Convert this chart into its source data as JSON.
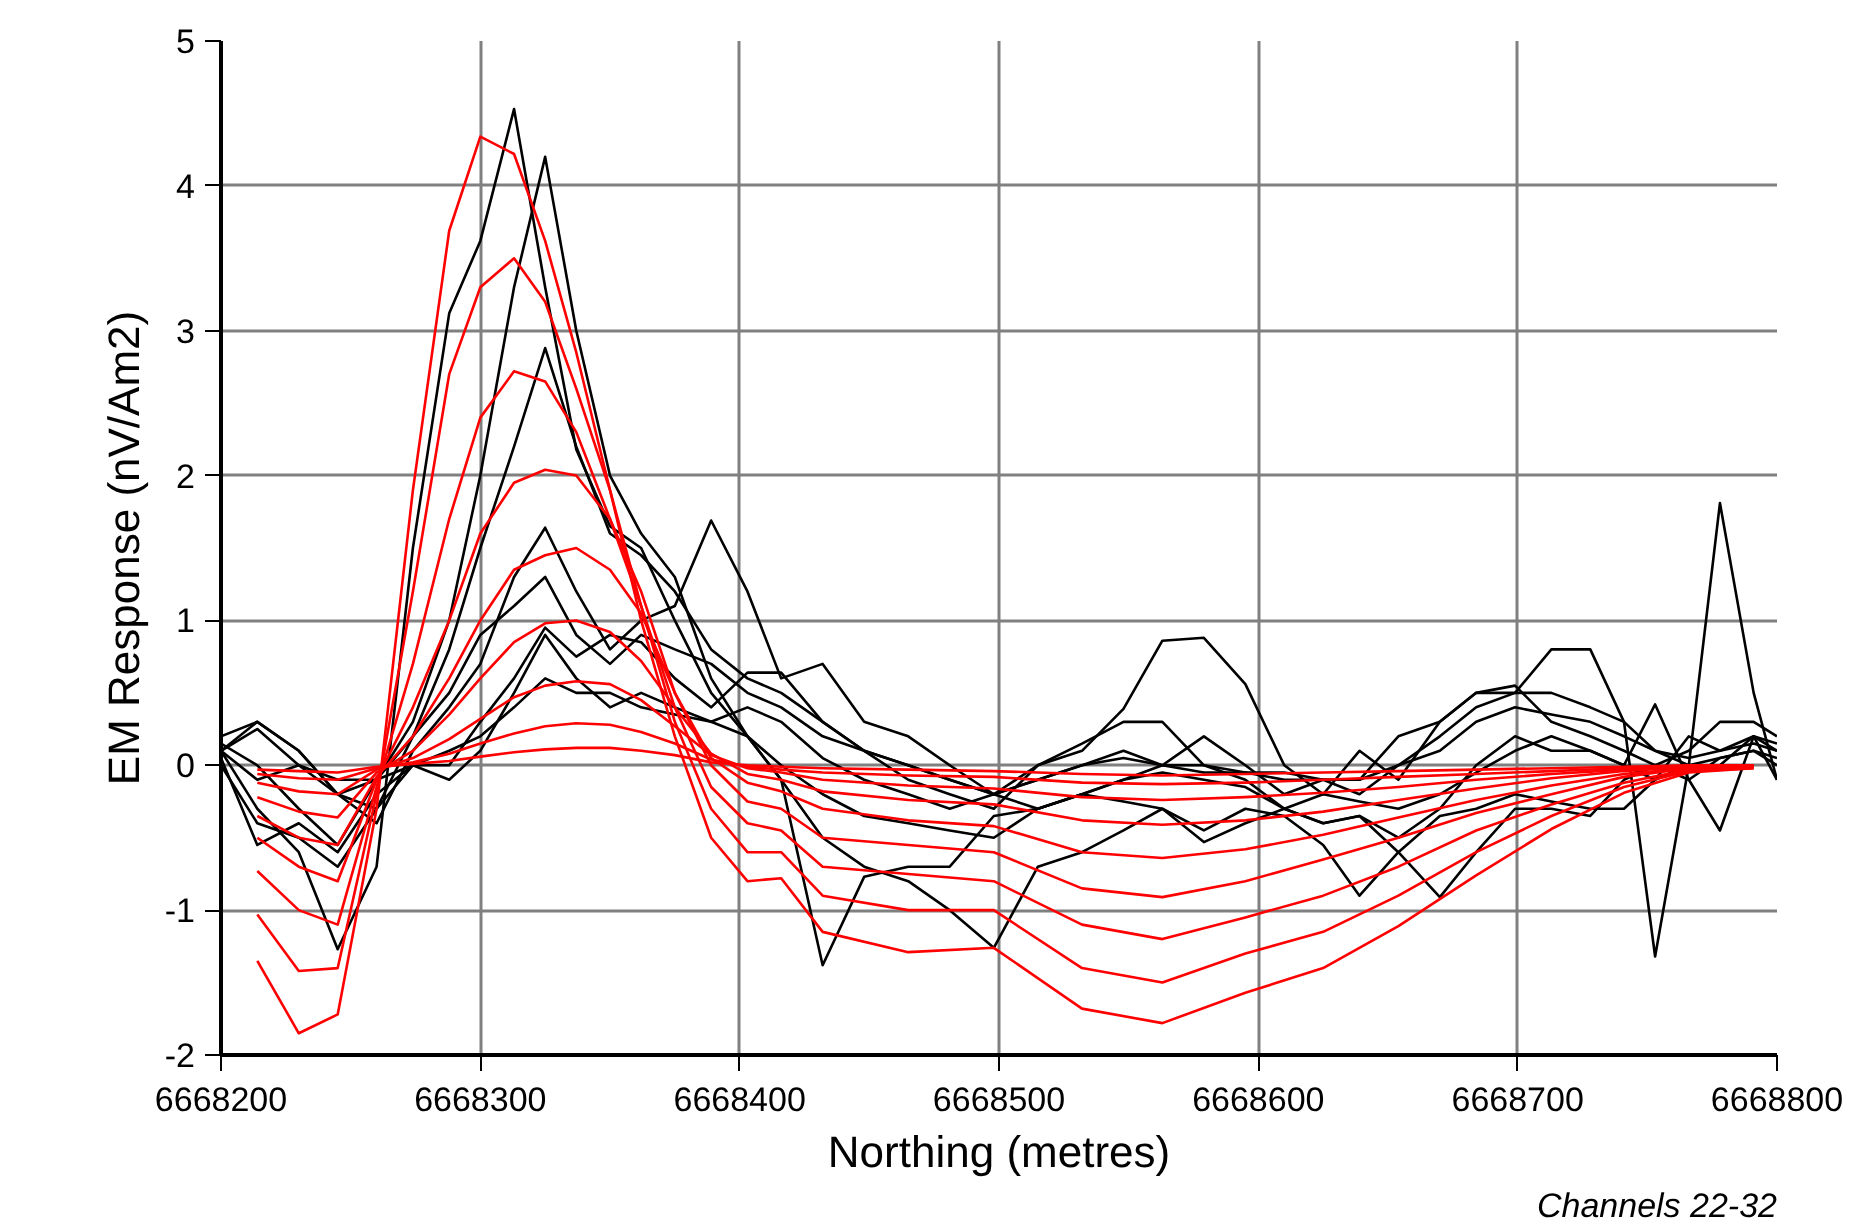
{
  "chart_data": {
    "type": "line",
    "xlabel": "Northing (metres)",
    "ylabel": "EM Response (nV/Am2)",
    "annotations": [
      "Channels 22-32"
    ],
    "xlim": [
      6668200,
      6668800
    ],
    "xticks": [
      6668200,
      6668300,
      6668400,
      6668500,
      6668600,
      6668700,
      6668800
    ],
    "ylim": [
      -2,
      5
    ],
    "yticks": [
      -2,
      -1,
      0,
      1,
      2,
      3,
      4,
      5
    ],
    "grid": true,
    "marker": "none",
    "line_style": "solid",
    "x": [
      6668200,
      6668214,
      6668230,
      6668245,
      6668260,
      6668274,
      6668288,
      6668300,
      6668313,
      6668325,
      6668337,
      6668350,
      6668362,
      6668375,
      6668389,
      6668403,
      6668416,
      6668432,
      6668448,
      6668465,
      6668481,
      6668498,
      6668515,
      6668532,
      6668548,
      6668563,
      6668579,
      6668595,
      6668610,
      6668625,
      6668639,
      6668654,
      6668670,
      6668684,
      6668699,
      6668713,
      6668728,
      6668741,
      6668753,
      6668766,
      6668778,
      6668791,
      6668800
    ],
    "series": [
      {
        "color": "#000000",
        "values": [
          0.1,
          -0.3,
          -0.6,
          -1.27,
          -0.7,
          1.5,
          3.12,
          3.62,
          4.53,
          3.3,
          2.18,
          1.65,
          1.5,
          1.0,
          0.5,
          0.2,
          -0.1,
          -0.5,
          -0.7,
          -0.8,
          -1.0,
          -1.26,
          -0.7,
          -0.6,
          -0.45,
          -0.3,
          -0.45,
          -0.3,
          -0.35,
          -0.55,
          -0.9,
          -0.6,
          -0.35,
          -0.3,
          -0.2,
          -0.25,
          -0.3,
          -0.3,
          -0.1,
          0.0,
          0.05,
          0.1,
          0.05
        ]
      },
      {
        "color": "#000000",
        "values": [
          0.15,
          0.0,
          -0.3,
          -0.55,
          -0.1,
          0.3,
          1.0,
          2.0,
          3.3,
          4.2,
          3.0,
          2.0,
          1.6,
          1.3,
          0.6,
          0.2,
          -0.1,
          -1.38,
          -0.77,
          -0.7,
          -0.7,
          -0.35,
          -0.3,
          -0.2,
          -0.1,
          -0.05,
          -0.1,
          -0.15,
          -0.3,
          -0.2,
          -0.25,
          -0.3,
          -0.2,
          -0.05,
          0.1,
          0.2,
          0.1,
          0.0,
          -0.1,
          0.2,
          0.1,
          0.15,
          0.1
        ]
      },
      {
        "color": "#000000",
        "values": [
          0.1,
          0.3,
          0.1,
          -0.2,
          -0.3,
          0.2,
          0.8,
          1.5,
          2.2,
          2.88,
          2.2,
          1.6,
          1.45,
          1.2,
          0.8,
          0.6,
          0.5,
          0.3,
          0.1,
          0.0,
          -0.1,
          -0.2,
          -0.1,
          0.0,
          0.1,
          0.0,
          -0.05,
          -0.05,
          -0.1,
          -0.1,
          -0.2,
          0.0,
          0.2,
          0.4,
          0.5,
          0.5,
          0.4,
          0.3,
          0.1,
          0.0,
          0.0,
          0.2,
          0.1
        ]
      },
      {
        "color": "#000000",
        "values": [
          0.2,
          0.3,
          0.1,
          -0.2,
          -0.4,
          0.1,
          0.4,
          0.7,
          1.3,
          1.64,
          1.2,
          0.8,
          1.0,
          1.1,
          1.69,
          1.2,
          0.6,
          0.7,
          0.3,
          0.2,
          0.0,
          -0.2,
          -0.3,
          -0.2,
          -0.1,
          0.0,
          0.2,
          0.0,
          -0.2,
          -0.1,
          -0.1,
          0.2,
          0.3,
          0.5,
          0.55,
          0.3,
          0.2,
          0.1,
          0.0,
          0.1,
          0.3,
          0.3,
          0.2
        ]
      },
      {
        "color": "#000000",
        "values": [
          0.1,
          0.25,
          0.0,
          -0.1,
          -0.1,
          0.2,
          0.5,
          0.9,
          1.1,
          1.3,
          0.9,
          0.7,
          0.9,
          0.8,
          0.7,
          0.5,
          0.4,
          0.2,
          0.1,
          0.0,
          -0.1,
          -0.2,
          -0.1,
          0.0,
          0.05,
          0.0,
          0.0,
          -0.05,
          -0.05,
          -0.1,
          -0.1,
          0.0,
          0.1,
          0.3,
          0.4,
          0.35,
          0.3,
          0.2,
          0.1,
          0.05,
          0.1,
          0.2,
          0.15
        ]
      },
      {
        "color": "#000000",
        "values": [
          0.1,
          -0.1,
          0.0,
          -0.2,
          -0.1,
          0.0,
          0.0,
          0.3,
          0.6,
          0.95,
          0.75,
          0.9,
          0.85,
          0.6,
          0.4,
          0.64,
          0.64,
          0.3,
          0.1,
          -0.1,
          -0.2,
          -0.3,
          0.0,
          0.1,
          0.39,
          0.86,
          0.88,
          0.56,
          0.0,
          -0.2,
          0.1,
          -0.1,
          0.3,
          0.5,
          0.5,
          0.8,
          0.8,
          0.3,
          -1.32,
          0.0,
          1.81,
          0.5,
          -0.1
        ]
      },
      {
        "color": "#000000",
        "values": [
          0.05,
          -0.55,
          -0.4,
          -0.6,
          -0.2,
          0.0,
          -0.1,
          0.1,
          0.5,
          0.9,
          0.6,
          0.4,
          0.5,
          0.4,
          0.3,
          0.4,
          0.3,
          0.05,
          -0.1,
          -0.2,
          -0.3,
          -0.2,
          0.0,
          0.15,
          0.3,
          0.3,
          0.0,
          -0.1,
          -0.3,
          -0.4,
          -0.35,
          -0.5,
          -0.3,
          0.0,
          0.2,
          0.1,
          0.1,
          0.0,
          0.42,
          -0.1,
          -0.45,
          0.2,
          -0.1
        ]
      },
      {
        "color": "#000000",
        "values": [
          0.0,
          -0.4,
          -0.5,
          -0.7,
          -0.3,
          0.0,
          0.1,
          0.2,
          0.4,
          0.6,
          0.5,
          0.5,
          0.4,
          0.35,
          0.3,
          0.2,
          0.0,
          -0.2,
          -0.35,
          -0.4,
          -0.45,
          -0.5,
          -0.3,
          -0.2,
          -0.25,
          -0.3,
          -0.53,
          -0.4,
          -0.3,
          -0.4,
          -0.35,
          -0.6,
          -0.91,
          -0.6,
          -0.3,
          -0.3,
          -0.35,
          -0.1,
          0.0,
          -0.1,
          0.05,
          0.1,
          0.0
        ]
      },
      {
        "color": "#ff0000",
        "x": [
          6668214,
          6668230,
          6668245,
          6668260,
          6668274,
          6668288,
          6668300,
          6668313,
          6668325,
          6668337,
          6668350,
          6668362,
          6668375,
          6668389,
          6668403,
          6668416,
          6668432,
          6668465,
          6668498,
          6668532,
          6668563,
          6668595,
          6668625,
          6668654,
          6668684,
          6668713,
          6668741,
          6668766,
          6668791
        ],
        "values": [
          -1.35,
          -1.85,
          -1.72,
          -0.3,
          1.9,
          3.69,
          4.34,
          4.22,
          3.62,
          2.85,
          1.9,
          1.0,
          0.2,
          -0.5,
          -0.8,
          -0.78,
          -1.15,
          -1.29,
          -1.26,
          -1.68,
          -1.78,
          -1.57,
          -1.4,
          -1.11,
          -0.76,
          -0.44,
          -0.19,
          -0.05,
          -0.02
        ]
      },
      {
        "color": "#ff0000",
        "x": [
          6668214,
          6668230,
          6668245,
          6668260,
          6668274,
          6668288,
          6668300,
          6668313,
          6668325,
          6668337,
          6668350,
          6668362,
          6668375,
          6668389,
          6668403,
          6668416,
          6668432,
          6668465,
          6668498,
          6668532,
          6668563,
          6668595,
          6668625,
          6668654,
          6668684,
          6668713,
          6668741,
          6668766,
          6668791
        ],
        "values": [
          -1.03,
          -1.42,
          -1.4,
          -0.2,
          1.2,
          2.7,
          3.3,
          3.5,
          3.2,
          2.6,
          1.9,
          1.1,
          0.3,
          -0.3,
          -0.6,
          -0.6,
          -0.9,
          -1.0,
          -1.0,
          -1.4,
          -1.5,
          -1.3,
          -1.15,
          -0.9,
          -0.6,
          -0.35,
          -0.15,
          -0.04,
          -0.02
        ]
      },
      {
        "color": "#ff0000",
        "x": [
          6668214,
          6668230,
          6668245,
          6668260,
          6668274,
          6668288,
          6668300,
          6668313,
          6668325,
          6668337,
          6668350,
          6668362,
          6668375,
          6668389,
          6668403,
          6668416,
          6668432,
          6668465,
          6668498,
          6668532,
          6668563,
          6668595,
          6668625,
          6668654,
          6668684,
          6668713,
          6668741,
          6668766,
          6668791
        ],
        "values": [
          -0.73,
          -1.0,
          -1.1,
          -0.15,
          0.7,
          1.7,
          2.4,
          2.72,
          2.65,
          2.3,
          1.7,
          1.1,
          0.4,
          -0.15,
          -0.4,
          -0.45,
          -0.7,
          -0.75,
          -0.8,
          -1.1,
          -1.2,
          -1.05,
          -0.9,
          -0.7,
          -0.45,
          -0.27,
          -0.12,
          -0.03,
          -0.01
        ]
      },
      {
        "color": "#ff0000",
        "x": [
          6668214,
          6668230,
          6668245,
          6668260,
          6668274,
          6668288,
          6668300,
          6668313,
          6668325,
          6668337,
          6668350,
          6668362,
          6668375,
          6668389,
          6668403,
          6668416,
          6668432,
          6668465,
          6668498,
          6668532,
          6668563,
          6668595,
          6668625,
          6668654,
          6668684,
          6668713,
          6668741,
          6668766,
          6668791
        ],
        "values": [
          -0.5,
          -0.7,
          -0.8,
          -0.1,
          0.4,
          1.0,
          1.6,
          1.95,
          2.04,
          2.0,
          1.7,
          1.2,
          0.5,
          0.0,
          -0.25,
          -0.3,
          -0.5,
          -0.55,
          -0.6,
          -0.85,
          -0.91,
          -0.8,
          -0.65,
          -0.5,
          -0.33,
          -0.2,
          -0.08,
          -0.02,
          -0.01
        ]
      },
      {
        "color": "#ff0000",
        "x": [
          6668214,
          6668230,
          6668245,
          6668260,
          6668274,
          6668288,
          6668300,
          6668313,
          6668325,
          6668337,
          6668350,
          6668362,
          6668375,
          6668389,
          6668403,
          6668416,
          6668432,
          6668465,
          6668498,
          6668532,
          6668563,
          6668595,
          6668625,
          6668654,
          6668684,
          6668713,
          6668741,
          6668766,
          6668791
        ],
        "values": [
          -0.35,
          -0.5,
          -0.55,
          -0.08,
          0.2,
          0.6,
          1.0,
          1.35,
          1.45,
          1.5,
          1.35,
          1.05,
          0.5,
          0.05,
          -0.12,
          -0.18,
          -0.3,
          -0.38,
          -0.42,
          -0.6,
          -0.64,
          -0.58,
          -0.48,
          -0.36,
          -0.24,
          -0.14,
          -0.06,
          -0.02,
          0
        ]
      },
      {
        "color": "#ff0000",
        "x": [
          6668214,
          6668230,
          6668245,
          6668260,
          6668274,
          6668288,
          6668300,
          6668313,
          6668325,
          6668337,
          6668350,
          6668362,
          6668375,
          6668389,
          6668403,
          6668416,
          6668432,
          6668465,
          6668498,
          6668532,
          6668563,
          6668595,
          6668625,
          6668654,
          6668684,
          6668713,
          6668741,
          6668766,
          6668791
        ],
        "values": [
          -0.22,
          -0.32,
          -0.36,
          -0.05,
          0.1,
          0.35,
          0.6,
          0.85,
          0.98,
          1.0,
          0.92,
          0.72,
          0.4,
          0.08,
          -0.06,
          -0.1,
          -0.18,
          -0.24,
          -0.27,
          -0.38,
          -0.41,
          -0.38,
          -0.32,
          -0.24,
          -0.16,
          -0.09,
          -0.04,
          -0.01,
          0
        ]
      },
      {
        "color": "#ff0000",
        "x": [
          6668214,
          6668230,
          6668245,
          6668260,
          6668274,
          6668288,
          6668300,
          6668313,
          6668325,
          6668337,
          6668350,
          6668362,
          6668375,
          6668389,
          6668403,
          6668416,
          6668432,
          6668465,
          6668498,
          6668532,
          6668563,
          6668595,
          6668625,
          6668654,
          6668684,
          6668713,
          6668741,
          6668766,
          6668791
        ],
        "values": [
          -0.12,
          -0.18,
          -0.2,
          -0.03,
          0.05,
          0.18,
          0.32,
          0.47,
          0.55,
          0.58,
          0.56,
          0.45,
          0.27,
          0.07,
          -0.02,
          -0.05,
          -0.1,
          -0.14,
          -0.16,
          -0.22,
          -0.24,
          -0.22,
          -0.19,
          -0.15,
          -0.1,
          -0.06,
          -0.03,
          -0.01,
          0
        ]
      },
      {
        "color": "#ff0000",
        "x": [
          6668214,
          6668230,
          6668245,
          6668260,
          6668274,
          6668288,
          6668300,
          6668313,
          6668325,
          6668337,
          6668350,
          6668362,
          6668375,
          6668389,
          6668403,
          6668416,
          6668432,
          6668465,
          6668498,
          6668532,
          6668563,
          6668595,
          6668625,
          6668654,
          6668684,
          6668713,
          6668741,
          6668766,
          6668791
        ],
        "values": [
          -0.06,
          -0.09,
          -0.1,
          -0.02,
          0.02,
          0.08,
          0.15,
          0.22,
          0.27,
          0.29,
          0.28,
          0.23,
          0.15,
          0.04,
          -0.01,
          -0.03,
          -0.05,
          -0.07,
          -0.08,
          -0.12,
          -0.13,
          -0.12,
          -0.1,
          -0.08,
          -0.06,
          -0.04,
          -0.02,
          -0.01,
          0
        ]
      },
      {
        "color": "#ff0000",
        "x": [
          6668214,
          6668230,
          6668245,
          6668260,
          6668274,
          6668288,
          6668300,
          6668313,
          6668325,
          6668337,
          6668350,
          6668362,
          6668375,
          6668389,
          6668403,
          6668416,
          6668432,
          6668465,
          6668498,
          6668532,
          6668563,
          6668595,
          6668625,
          6668654,
          6668684,
          6668713,
          6668741,
          6668766,
          6668791
        ],
        "values": [
          -0.03,
          -0.04,
          -0.05,
          -0.01,
          0.01,
          0.03,
          0.06,
          0.09,
          0.11,
          0.12,
          0.12,
          0.1,
          0.07,
          0.02,
          0,
          -0.01,
          -0.02,
          -0.03,
          -0.04,
          -0.06,
          -0.07,
          -0.06,
          -0.05,
          -0.04,
          -0.03,
          -0.02,
          -0.01,
          0,
          0
        ]
      }
    ]
  }
}
